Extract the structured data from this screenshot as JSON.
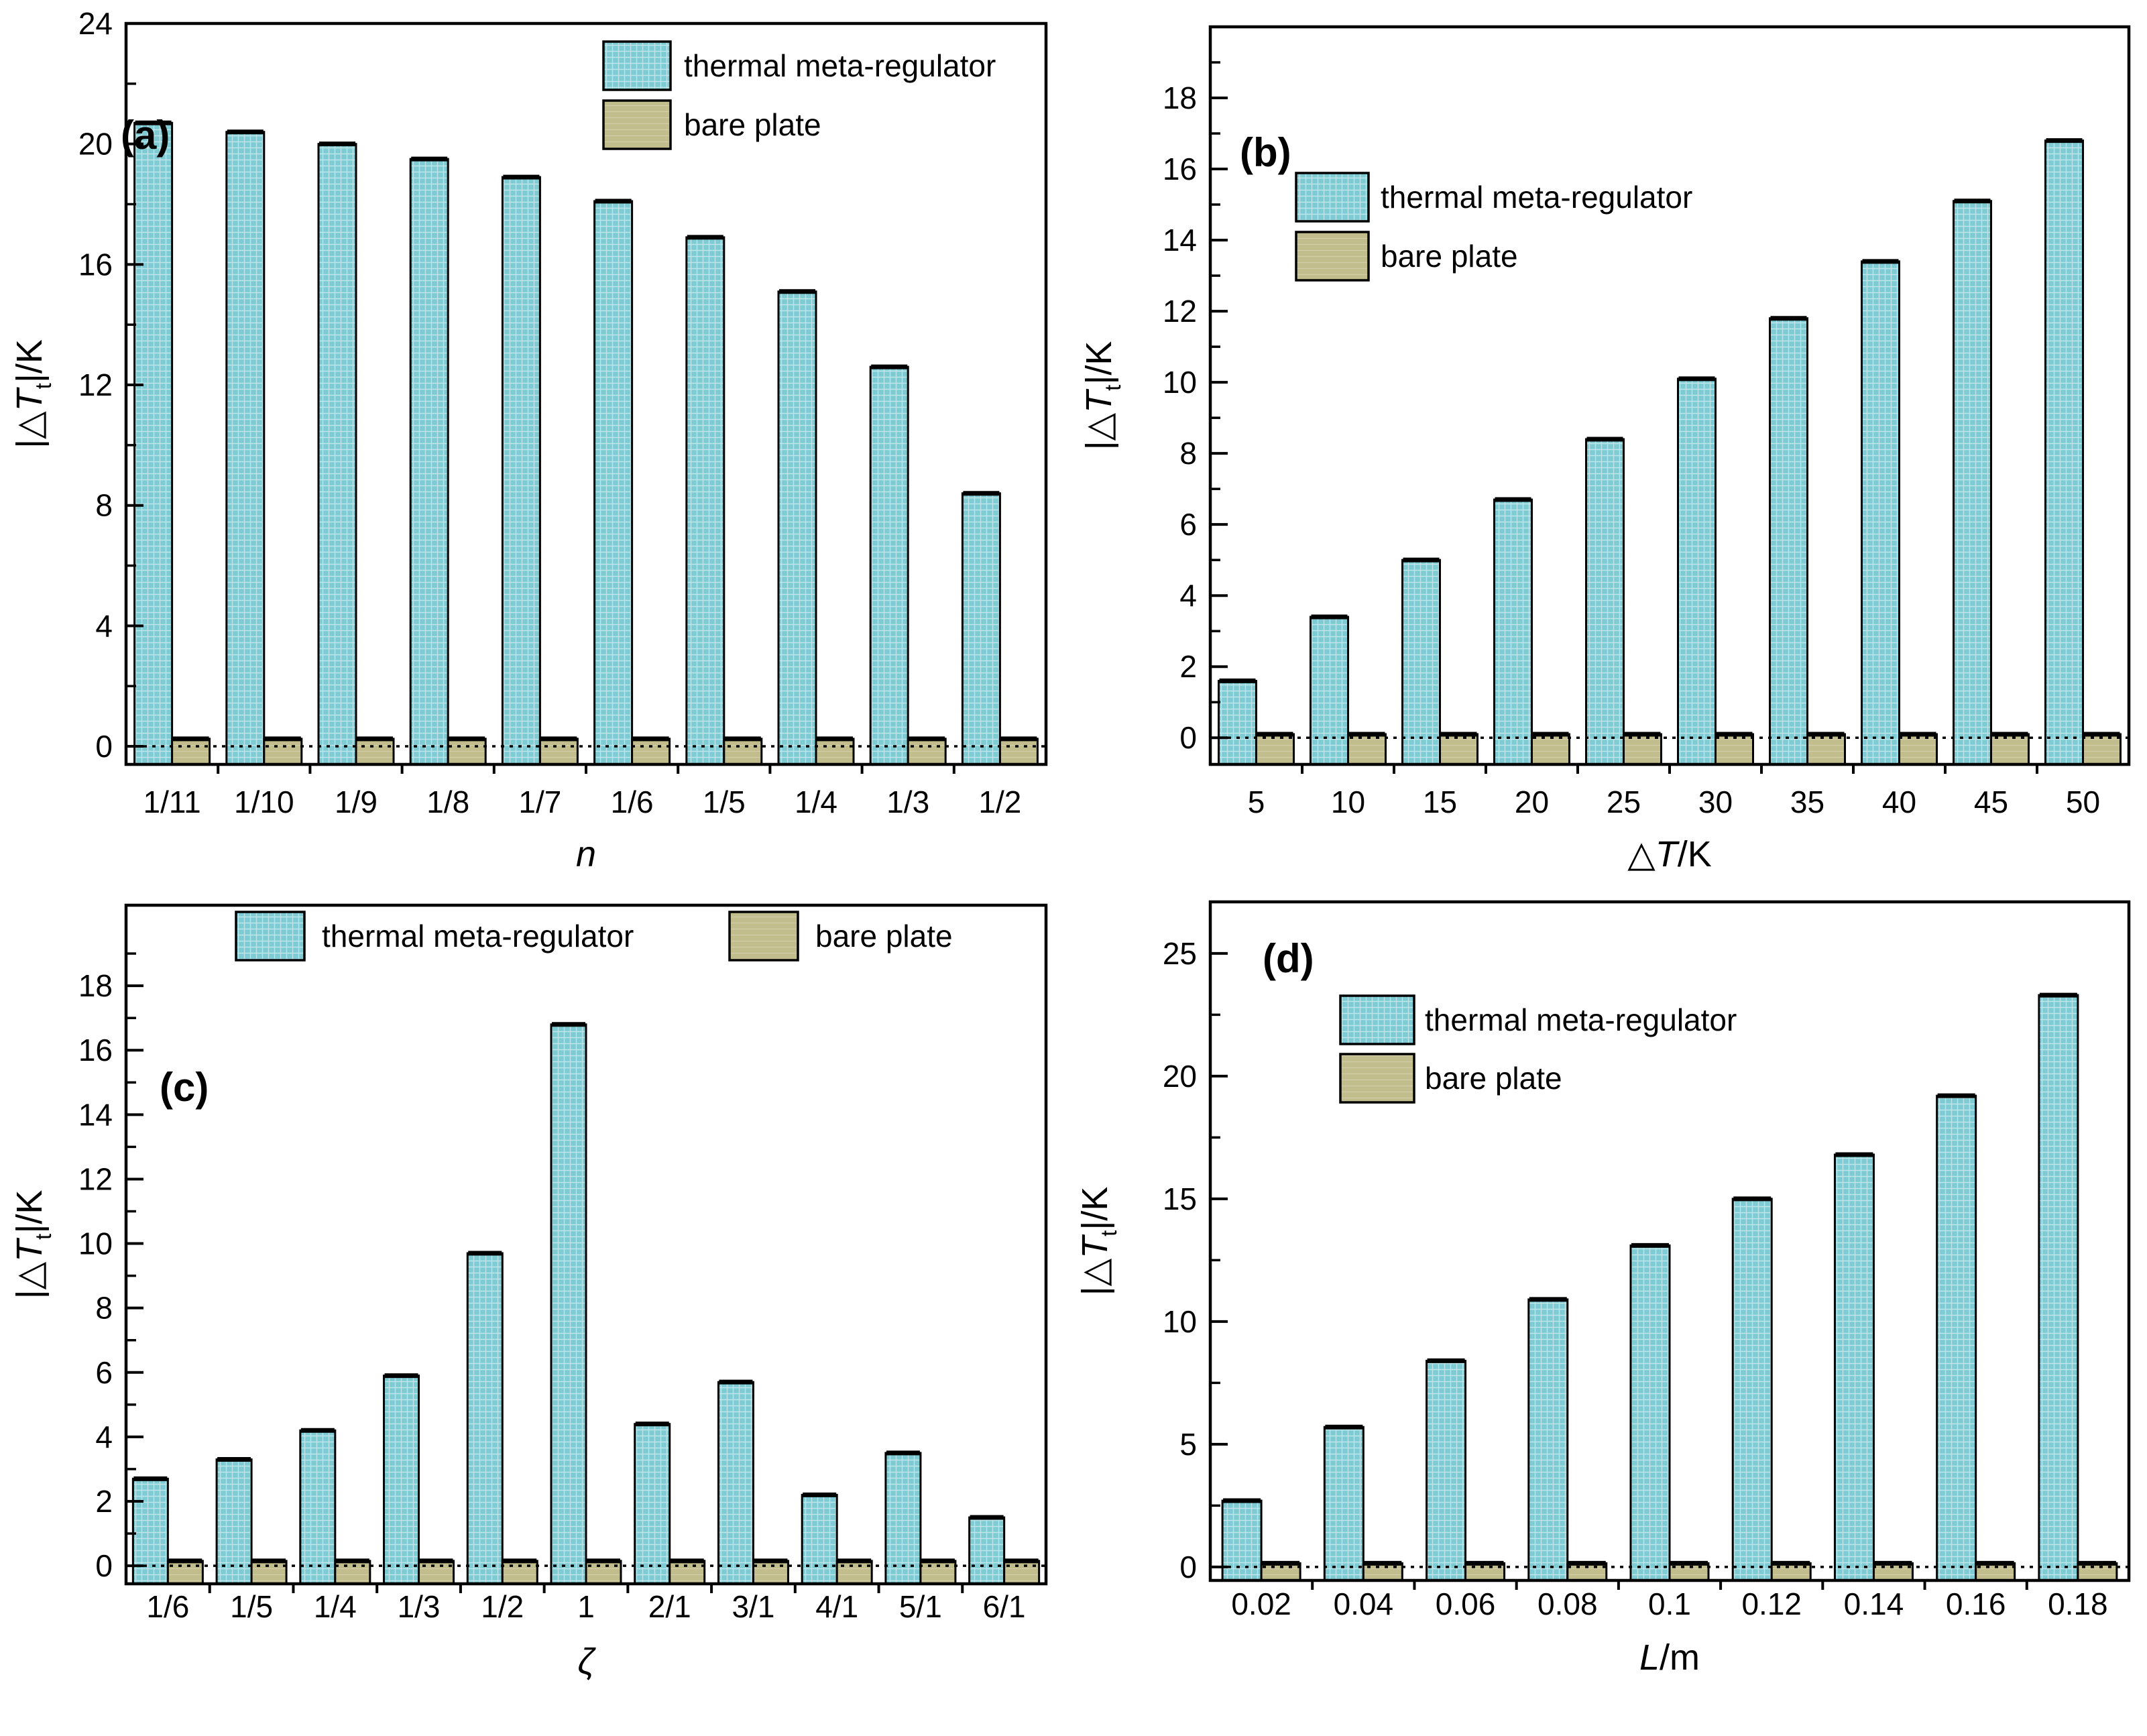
{
  "figure": {
    "description": "Four-panel bar chart figure comparing temperature regulation performance",
    "background": "#ffffff"
  },
  "colors": {
    "meta_fill": "#7ecbd4",
    "bare_fill": "#c2bd8c",
    "outline": "#000000",
    "text": "#000000"
  },
  "legend": {
    "meta": "thermal meta-regulator",
    "bare": "bare plate"
  },
  "chart_data": [
    {
      "panel": "(a)",
      "type": "bar",
      "categories": [
        "1/11",
        "1/10",
        "1/9",
        "1/8",
        "1/7",
        "1/6",
        "1/5",
        "1/4",
        "1/3",
        "1/2"
      ],
      "series": [
        {
          "name": "thermal meta-regulator",
          "values": [
            20.7,
            20.4,
            20.0,
            19.5,
            18.9,
            18.1,
            16.9,
            15.1,
            12.6,
            8.4
          ]
        },
        {
          "name": "bare plate",
          "values": [
            0.25,
            0.25,
            0.25,
            0.25,
            0.25,
            0.25,
            0.25,
            0.25,
            0.25,
            0.25
          ]
        }
      ],
      "xlabel": {
        "pre": "",
        "it": "n",
        "sub": "",
        "post": ""
      },
      "ylabel": {
        "pre": "|△",
        "it": "T",
        "sub": "t",
        "post": "|/K"
      },
      "ylim": [
        -0.6,
        24
      ],
      "yticks": [
        0,
        4,
        8,
        12,
        16,
        20,
        24
      ],
      "minor_start": 2,
      "minor_step": 4,
      "zero_line": 0,
      "grid": false,
      "legend_position": "inside top-right vertical"
    },
    {
      "panel": "(b)",
      "type": "bar",
      "categories": [
        "5",
        "10",
        "15",
        "20",
        "25",
        "30",
        "35",
        "40",
        "45",
        "50"
      ],
      "series": [
        {
          "name": "thermal meta-regulator",
          "values": [
            1.6,
            3.4,
            5.0,
            6.7,
            8.4,
            10.1,
            11.8,
            13.4,
            15.1,
            16.8
          ]
        },
        {
          "name": "bare plate",
          "values": [
            0.1,
            0.1,
            0.1,
            0.1,
            0.1,
            0.1,
            0.1,
            0.1,
            0.1,
            0.1
          ]
        }
      ],
      "xlabel": {
        "pre": "△",
        "it": "T",
        "sub": "",
        "post": "/K"
      },
      "ylabel": {
        "pre": "|△",
        "it": "T",
        "sub": "t",
        "post": "|/K"
      },
      "ylim": [
        -0.75,
        20
      ],
      "yticks": [
        0,
        2,
        4,
        6,
        8,
        10,
        12,
        14,
        16,
        18
      ],
      "minor_start": 1,
      "minor_step": 2,
      "zero_line": 0,
      "grid": false,
      "legend_position": "inside upper-left vertical"
    },
    {
      "panel": "(c)",
      "type": "bar",
      "categories": [
        "1/6",
        "1/5",
        "1/4",
        "1/3",
        "1/2",
        "1",
        "2/1",
        "3/1",
        "4/1",
        "5/1",
        "6/1"
      ],
      "series": [
        {
          "name": "thermal meta-regulator",
          "values": [
            2.7,
            3.3,
            4.2,
            5.9,
            9.7,
            16.8,
            4.4,
            5.7,
            2.2,
            3.5,
            1.5
          ]
        },
        {
          "name": "bare plate",
          "values": [
            0.15,
            0.15,
            0.15,
            0.15,
            0.15,
            0.15,
            0.15,
            0.15,
            0.15,
            0.15,
            0.15
          ]
        }
      ],
      "xlabel": {
        "pre": "",
        "it": "ζ",
        "sub": "",
        "post": ""
      },
      "ylabel": {
        "pre": "|△",
        "it": "T",
        "sub": "t",
        "post": "|/K"
      },
      "ylim": [
        -0.56,
        20.5
      ],
      "yticks": [
        0,
        2,
        4,
        6,
        8,
        10,
        12,
        14,
        16,
        18
      ],
      "minor_start": 1,
      "minor_step": 2,
      "zero_line": 0,
      "grid": false,
      "legend_position": "inside top horizontal"
    },
    {
      "panel": "(d)",
      "type": "bar",
      "categories": [
        "0.02",
        "0.04",
        "0.06",
        "0.08",
        "0.1",
        "0.12",
        "0.14",
        "0.16",
        "0.18"
      ],
      "series": [
        {
          "name": "thermal meta-regulator",
          "values": [
            2.7,
            5.7,
            8.4,
            10.9,
            13.1,
            15.0,
            16.8,
            19.2,
            23.3
          ]
        },
        {
          "name": "bare plate",
          "values": [
            0.15,
            0.15,
            0.15,
            0.15,
            0.15,
            0.15,
            0.15,
            0.15,
            0.15
          ]
        }
      ],
      "xlabel": {
        "pre": "",
        "it": "L",
        "sub": "",
        "post": "/m"
      },
      "ylabel": {
        "pre": "|△",
        "it": "T",
        "sub": "t",
        "post": "|/K"
      },
      "ylim": [
        -0.55,
        27.1
      ],
      "yticks": [
        0,
        5,
        10,
        15,
        20,
        25
      ],
      "minor_start": 2.5,
      "minor_step": 5,
      "zero_line": 0,
      "grid": false,
      "legend_position": "inside upper-left vertical"
    }
  ]
}
